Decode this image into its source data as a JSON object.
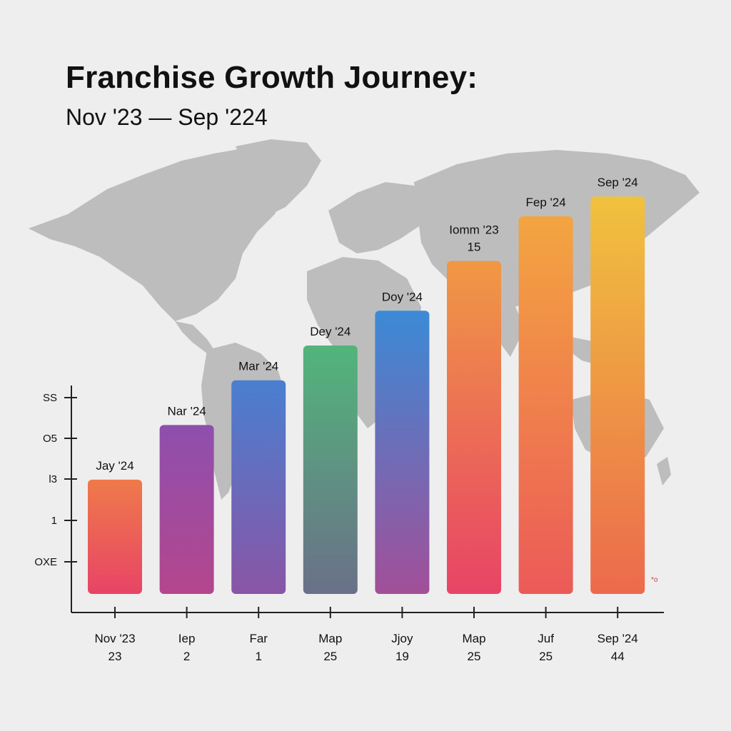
{
  "chart_data": {
    "type": "bar",
    "title": "Franchise Growth Journey:",
    "subtitle": "Nov  '23 — Sep '224",
    "y_tick_labels": [
      "OXE",
      "1",
      "l3",
      "O5",
      "SS"
    ],
    "categories": [
      {
        "label": "Nov '23",
        "sub": "23"
      },
      {
        "label": "Iep",
        "sub": "2"
      },
      {
        "label": "Far",
        "sub": "1"
      },
      {
        "label": "Map",
        "sub": "25"
      },
      {
        "label": "Jjoy",
        "sub": "19"
      },
      {
        "label": "Map",
        "sub": "25"
      },
      {
        "label": "Juf",
        "sub": "25"
      },
      {
        "label": "Sep '24",
        "sub": "44"
      }
    ],
    "bar_labels": [
      [
        "Jay '24"
      ],
      [
        "Nar '24"
      ],
      [
        "Mar '24"
      ],
      [
        "Dey '24"
      ],
      [
        "Doy '24"
      ],
      [
        "Iomm '23",
        "15"
      ],
      [
        "Fep '24"
      ],
      [
        "Sep '24"
      ]
    ],
    "values": [
      23,
      34,
      43,
      50,
      57,
      67,
      76,
      80
    ],
    "ylim": [
      0,
      100
    ],
    "bar_gradients": [
      [
        "#ef7a4a",
        "#e84466"
      ],
      [
        "#8e4fae",
        "#b4468d"
      ],
      [
        "#4a7fd0",
        "#8a55a6"
      ],
      [
        "#52b57b",
        "#6a7088"
      ],
      [
        "#3b8ad6",
        "#a24f98"
      ],
      [
        "#f09844",
        "#e84466"
      ],
      [
        "#f3a540",
        "#ec5a58"
      ],
      [
        "#f0c23e",
        "#ec6a4c"
      ]
    ],
    "grid": false,
    "corner_mark": "*o"
  }
}
